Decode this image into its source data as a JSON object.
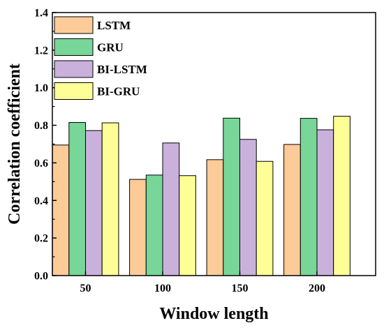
{
  "chart_data": {
    "type": "bar",
    "xlabel": "Window length",
    "ylabel": "Correlation coefficient",
    "categories": [
      "50",
      "100",
      "150",
      "200"
    ],
    "ylim": [
      0.0,
      1.4
    ],
    "yticks": [
      "0.0",
      "0.2",
      "0.4",
      "0.6",
      "0.8",
      "1.0",
      "1.2",
      "1.4"
    ],
    "grid": false,
    "legend_position": "top-left",
    "series": [
      {
        "name": "LSTM",
        "color": "#FDCB98",
        "values": [
          0.695,
          0.512,
          0.617,
          0.698
        ]
      },
      {
        "name": "GRU",
        "color": "#78D698",
        "values": [
          0.815,
          0.535,
          0.838,
          0.837
        ]
      },
      {
        "name": "BI-LSTM",
        "color": "#CAB1DC",
        "values": [
          0.772,
          0.706,
          0.725,
          0.776
        ]
      },
      {
        "name": "BI-GRU",
        "color": "#FEFE96",
        "values": [
          0.813,
          0.532,
          0.608,
          0.848
        ]
      }
    ]
  }
}
